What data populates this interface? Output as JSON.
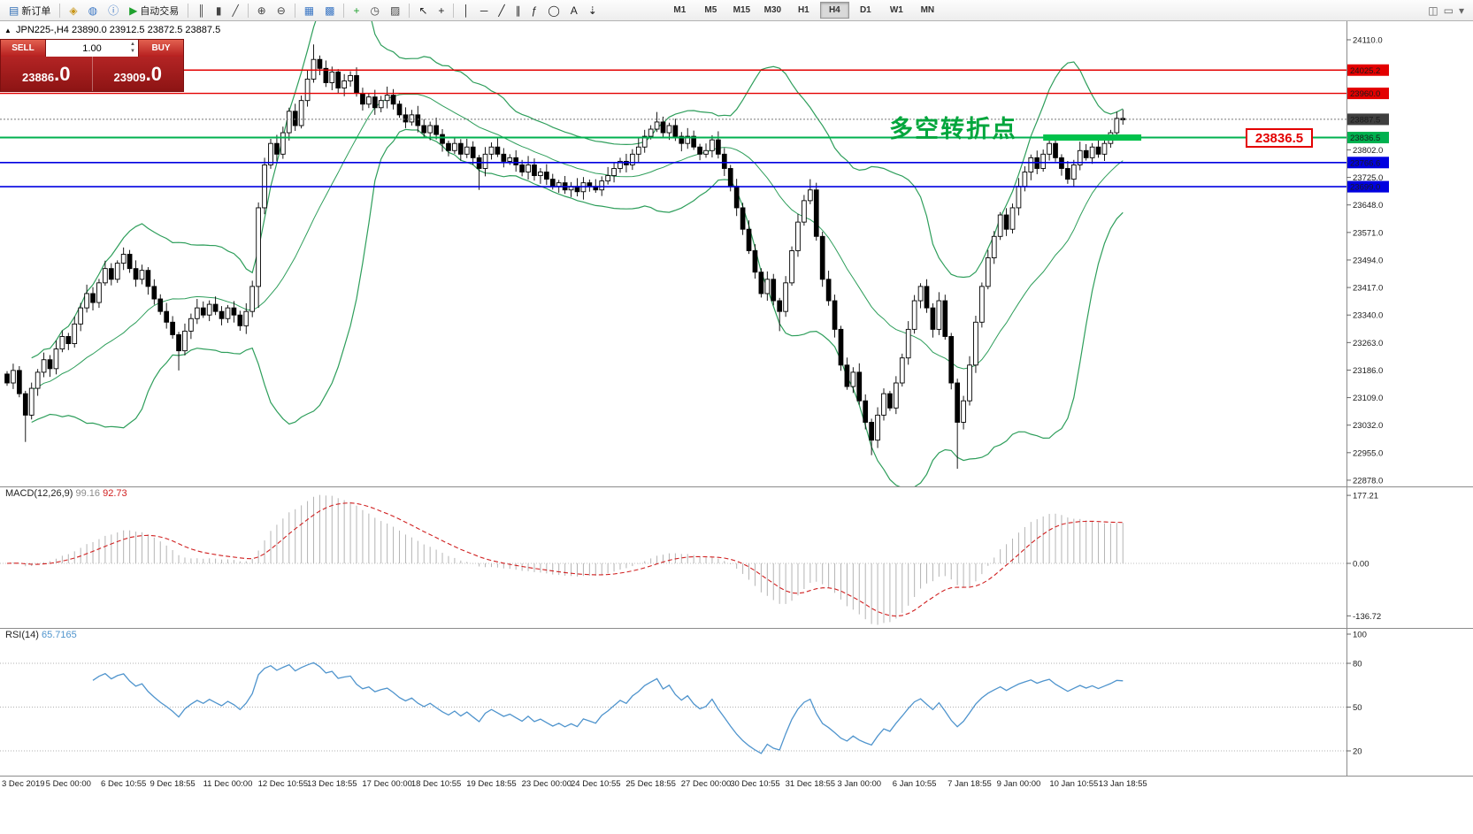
{
  "toolbar": {
    "items": [
      {
        "name": "new-order-button",
        "glyph": "▤",
        "glyph_color": "#2f6db5",
        "label": "新订单"
      },
      {
        "name": "separator"
      },
      {
        "name": "charts-icon",
        "glyph": "◈",
        "glyph_color": "#c8961a"
      },
      {
        "name": "market-watch-icon",
        "glyph": "◍",
        "glyph_color": "#3a76c4"
      },
      {
        "name": "info-icon",
        "glyph": "ⓘ",
        "glyph_color": "#3a76c4"
      },
      {
        "name": "autotrading-button",
        "glyph": "▶",
        "glyph_color": "#1fa12e",
        "label": "自动交易"
      },
      {
        "name": "separator"
      },
      {
        "name": "bar-chart-icon",
        "glyph": "║",
        "glyph_color": "#444"
      },
      {
        "name": "candlestick-chart-icon",
        "glyph": "▮",
        "glyph_color": "#444"
      },
      {
        "name": "line-chart-icon",
        "glyph": "╱",
        "glyph_color": "#444"
      },
      {
        "name": "separator"
      },
      {
        "name": "zoom-in-icon",
        "glyph": "⊕",
        "glyph_color": "#444"
      },
      {
        "name": "zoom-out-icon",
        "glyph": "⊖",
        "glyph_color": "#444"
      },
      {
        "name": "separator"
      },
      {
        "name": "tile-windows-icon",
        "glyph": "▦",
        "glyph_color": "#3a76c4"
      },
      {
        "name": "cascade-windows-icon",
        "glyph": "▩",
        "glyph_color": "#3a76c4"
      },
      {
        "name": "separator"
      },
      {
        "name": "indicators-icon",
        "glyph": "+",
        "glyph_color": "#1fa12e"
      },
      {
        "name": "periods-icon",
        "glyph": "◷",
        "glyph_color": "#444"
      },
      {
        "name": "templates-icon",
        "glyph": "▨",
        "glyph_color": "#444"
      },
      {
        "name": "separator"
      },
      {
        "name": "cursor-icon",
        "glyph": "↖",
        "glyph_color": "#222"
      },
      {
        "name": "crosshair-icon",
        "glyph": "+",
        "glyph_color": "#222"
      },
      {
        "name": "separator"
      },
      {
        "name": "vertical-line-icon",
        "glyph": "│",
        "glyph_color": "#222"
      },
      {
        "name": "horizontal-line-icon",
        "glyph": "─",
        "glyph_color": "#222"
      },
      {
        "name": "trendline-icon",
        "glyph": "╱",
        "glyph_color": "#222"
      },
      {
        "name": "channel-icon",
        "glyph": "∥",
        "glyph_color": "#222"
      },
      {
        "name": "fibonacci-icon",
        "glyph": "ƒ",
        "glyph_color": "#222"
      },
      {
        "name": "shapes-icon",
        "glyph": "◯",
        "glyph_color": "#222"
      },
      {
        "name": "text-icon",
        "glyph": "A",
        "glyph_color": "#222"
      },
      {
        "name": "arrows-icon",
        "glyph": "⇣",
        "glyph_color": "#222"
      }
    ],
    "timeframes": [
      "M1",
      "M5",
      "M15",
      "M30",
      "H1",
      "H4",
      "D1",
      "W1",
      "MN"
    ],
    "active_timeframe": "H4",
    "right_icons": [
      {
        "name": "dock-chart-icon",
        "glyph": "◫"
      },
      {
        "name": "restore-chart-icon",
        "glyph": "▭"
      },
      {
        "name": "more-tools-icon",
        "glyph": "▾"
      }
    ]
  },
  "symbol_info": "JPN225-,H4  23890.0 23912.5 23872.5 23887.5",
  "trade_panel": {
    "collapse_arrow": "▲",
    "sell_label": "SELL",
    "buy_label": "BUY",
    "volume": "1.00",
    "spinner_up": "▲",
    "spinner_down": "▼",
    "sell_price": {
      "main": "23886",
      "pips": ".0"
    },
    "buy_price": {
      "main": "23909",
      "pips": ".0"
    }
  },
  "annotation": {
    "text": "多空转折点",
    "color": "#00a63c"
  },
  "price_flag": {
    "text": "23836.5"
  },
  "indicators": {
    "macd": {
      "name": "MACD(12,26,9)",
      "value1": "99.16",
      "value2": "92.73",
      "axis": [
        [
          "177.21",
          177.21
        ],
        [
          "0.00",
          0
        ],
        [
          "-136.72",
          -136.72
        ]
      ]
    },
    "rsi": {
      "name": "RSI(14)",
      "value": "65.7165",
      "levels": [
        80,
        50,
        20
      ],
      "axis": [
        [
          "100",
          100
        ],
        [
          "80",
          80
        ],
        [
          "50",
          50
        ],
        [
          "20",
          20
        ]
      ]
    }
  },
  "colors": {
    "bollinger": "#2e9e5b",
    "bull_candle": "#ffffff",
    "bear_candle": "#000000",
    "candle_border": "#000000",
    "macd_hist": "#b4b4b4",
    "macd_signal": "#d02020",
    "rsi_line": "#4f94cd",
    "level_red": "#e30000",
    "level_blue": "#0000e0",
    "level_green": "#00b14f",
    "highlight_green": "#00c24b",
    "current_price_tag": "#3f3f3f",
    "trade_panel_red": "#a32020",
    "annotation_green": "#00a63c"
  },
  "chart_data": {
    "type": "candlestick",
    "symbol": "JPN225-",
    "timeframe": "H4",
    "last_bar": {
      "open": 23890.0,
      "high": 23912.5,
      "low": 23872.5,
      "close": 23887.5
    },
    "current_price": {
      "value": 23887.5,
      "label": "23887.5"
    },
    "ylim": [
      22878,
      24110
    ],
    "bollinger": {
      "period": 20,
      "deviation": 2
    },
    "closes": [
      23150,
      23185,
      23120,
      23060,
      23135,
      23180,
      23215,
      23190,
      23245,
      23280,
      23260,
      23315,
      23360,
      23400,
      23375,
      23430,
      23470,
      23440,
      23485,
      23510,
      23470,
      23440,
      23465,
      23420,
      23385,
      23350,
      23320,
      23285,
      23240,
      23295,
      23330,
      23360,
      23340,
      23370,
      23350,
      23330,
      23360,
      23340,
      23310,
      23350,
      23420,
      23640,
      23760,
      23820,
      23790,
      23850,
      23910,
      23870,
      23940,
      24000,
      24055,
      24030,
      23990,
      24020,
      23975,
      23995,
      24010,
      23960,
      23930,
      23950,
      23920,
      23940,
      23955,
      23930,
      23900,
      23880,
      23900,
      23870,
      23850,
      23870,
      23845,
      23820,
      23800,
      23820,
      23790,
      23810,
      23780,
      23750,
      23790,
      23810,
      23790,
      23770,
      23780,
      23760,
      23740,
      23760,
      23730,
      23740,
      23720,
      23700,
      23710,
      23690,
      23700,
      23685,
      23710,
      23700,
      23690,
      23715,
      23730,
      23750,
      23770,
      23760,
      23790,
      23810,
      23840,
      23860,
      23880,
      23850,
      23870,
      23840,
      23820,
      23840,
      23810,
      23790,
      23800,
      23830,
      23790,
      23750,
      23700,
      23640,
      23580,
      23520,
      23460,
      23400,
      23440,
      23380,
      23350,
      23430,
      23520,
      23600,
      23660,
      23690,
      23560,
      23440,
      23380,
      23300,
      23200,
      23140,
      23180,
      23100,
      23040,
      22990,
      23060,
      23120,
      23080,
      23150,
      23220,
      23300,
      23380,
      23420,
      23360,
      23300,
      23380,
      23280,
      23150,
      23040,
      23100,
      23200,
      23320,
      23420,
      23500,
      23560,
      23620,
      23580,
      23640,
      23700,
      23740,
      23780,
      23750,
      23790,
      23820,
      23780,
      23750,
      23720,
      23760,
      23800,
      23780,
      23810,
      23790,
      23820,
      23850,
      23890,
      23887.5
    ],
    "wick_overrides": {
      "3": [
        8,
        75
      ],
      "28": [
        8,
        55
      ],
      "41": [
        15,
        60
      ],
      "50": [
        42,
        10
      ],
      "77": [
        8,
        60
      ],
      "106": [
        28,
        8
      ],
      "126": [
        8,
        55
      ],
      "131": [
        30,
        10
      ],
      "141": [
        10,
        42
      ],
      "155": [
        12,
        130
      ],
      "182": [
        25,
        15
      ]
    },
    "levels": [
      {
        "price": 24025.2,
        "label": "24025.2",
        "color": "#e30000",
        "width": 1.4
      },
      {
        "price": 23960.0,
        "label": "23960.0",
        "color": "#e30000",
        "width": 1.4
      },
      {
        "price": 23836.5,
        "label": "23836.5",
        "color": "#00b14f",
        "width": 2
      },
      {
        "price": 23766.6,
        "label": "23766.6",
        "color": "#0000e0",
        "width": 1.6
      },
      {
        "price": 23699.0,
        "label": "23699.0",
        "color": "#0000e0",
        "width": 1.6
      }
    ],
    "highlight_bar": {
      "price": 23836.5,
      "from_index": 169,
      "to_index": 185,
      "thickness": 7
    },
    "y_axis_ticks": [
      24110,
      24033,
      23956,
      23879,
      23802,
      23725,
      23648,
      23571,
      23494,
      23417,
      23340,
      23263,
      23186,
      23109,
      23032,
      22955,
      22878
    ],
    "x_axis_labels": [
      {
        "text": "3 Dec 2019",
        "i": 1
      },
      {
        "text": "5 Dec 00:00",
        "i": 10
      },
      {
        "text": "6 Dec 10:55",
        "i": 19
      },
      {
        "text": "9 Dec 18:55",
        "i": 27
      },
      {
        "text": "11 Dec 00:00",
        "i": 36
      },
      {
        "text": "12 Dec 10:55",
        "i": 45
      },
      {
        "text": "13 Dec 18:55",
        "i": 53
      },
      {
        "text": "17 Dec 00:00",
        "i": 62
      },
      {
        "text": "18 Dec 10:55",
        "i": 70
      },
      {
        "text": "19 Dec 18:55",
        "i": 79
      },
      {
        "text": "23 Dec 00:00",
        "i": 88
      },
      {
        "text": "24 Dec 10:55",
        "i": 96
      },
      {
        "text": "25 Dec 18:55",
        "i": 105
      },
      {
        "text": "27 Dec 00:00",
        "i": 114
      },
      {
        "text": "30 Dec 10:55",
        "i": 122
      },
      {
        "text": "31 Dec 18:55",
        "i": 131
      },
      {
        "text": "3 Jan 00:00",
        "i": 139
      },
      {
        "text": "6 Jan 10:55",
        "i": 148
      },
      {
        "text": "7 Jan 18:55",
        "i": 157
      },
      {
        "text": "9 Jan 00:00",
        "i": 165
      },
      {
        "text": "10 Jan 10:55",
        "i": 174
      },
      {
        "text": "13 Jan 18:55",
        "i": 182
      }
    ]
  }
}
